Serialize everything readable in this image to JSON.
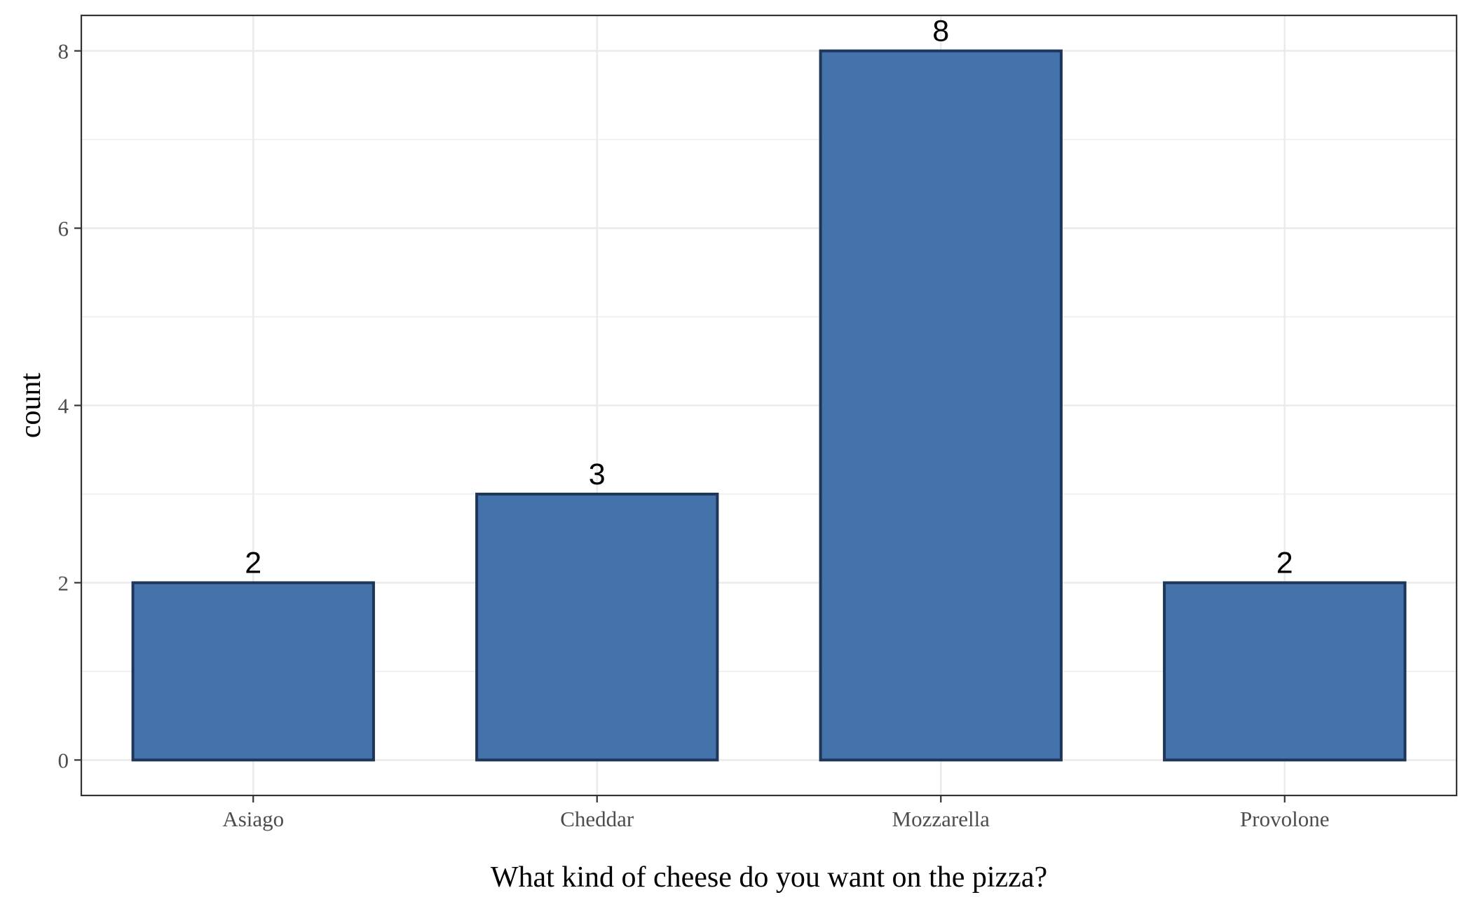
{
  "chart_data": {
    "type": "bar",
    "title": "",
    "xlabel": "What kind of cheese do you want on the pizza?",
    "ylabel": "count",
    "categories": [
      "Asiago",
      "Cheddar",
      "Mozzarella",
      "Provolone"
    ],
    "values": [
      2,
      3,
      8,
      2
    ],
    "data_labels": [
      "2",
      "3",
      "8",
      "2"
    ],
    "ylim": [
      -0.4,
      8.4
    ],
    "yticks": [
      0,
      2,
      4,
      6,
      8
    ],
    "ytick_labels": [
      "0",
      "2",
      "4",
      "6",
      "8"
    ],
    "y_minor_ticks": [
      1,
      3,
      5,
      7
    ],
    "grid": true,
    "legend": "none",
    "colors": {
      "bar_fill": "#4472ab",
      "bar_stroke": "#1e3657",
      "grid": "#ebebeb",
      "panel_border": "#333333",
      "axis_text": "#4d4d4d"
    }
  }
}
